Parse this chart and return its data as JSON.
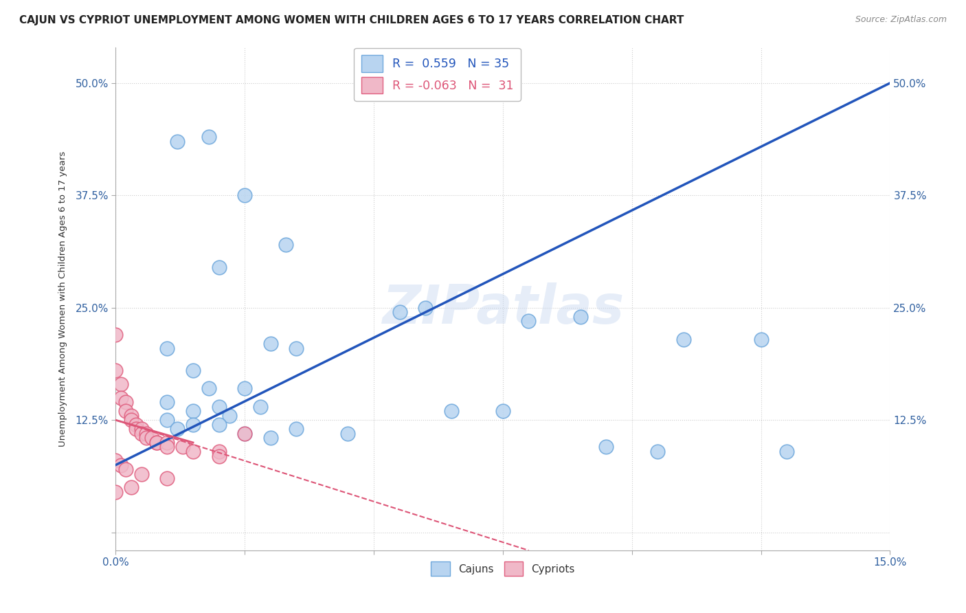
{
  "title": "CAJUN VS CYPRIOT UNEMPLOYMENT AMONG WOMEN WITH CHILDREN AGES 6 TO 17 YEARS CORRELATION CHART",
  "source": "Source: ZipAtlas.com",
  "xlim": [
    0.0,
    15.0
  ],
  "ylim": [
    -2.0,
    54.0
  ],
  "ylabel": "Unemployment Among Women with Children Ages 6 to 17 years",
  "legend_cajun_r": "0.559",
  "legend_cajun_n": "35",
  "legend_cypriot_r": "-0.063",
  "legend_cypriot_n": "31",
  "cajun_color": "#b8d4f0",
  "cajun_edge_color": "#6fa8dc",
  "cypriot_color": "#f0b8c8",
  "cypriot_edge_color": "#e06080",
  "trend_cajun_color": "#2255bb",
  "trend_cypriot_color": "#dd5577",
  "background_color": "#ffffff",
  "watermark_text": "ZIPatlas",
  "cajun_points": [
    [
      1.2,
      43.5
    ],
    [
      1.8,
      44.0
    ],
    [
      2.5,
      37.5
    ],
    [
      3.3,
      32.0
    ],
    [
      2.0,
      29.5
    ],
    [
      1.0,
      20.5
    ],
    [
      1.5,
      18.0
    ],
    [
      3.0,
      21.0
    ],
    [
      3.5,
      20.5
    ],
    [
      1.8,
      16.0
    ],
    [
      2.5,
      16.0
    ],
    [
      1.0,
      14.5
    ],
    [
      2.0,
      14.0
    ],
    [
      2.8,
      14.0
    ],
    [
      1.5,
      13.5
    ],
    [
      2.2,
      13.0
    ],
    [
      1.0,
      12.5
    ],
    [
      1.5,
      12.0
    ],
    [
      2.0,
      12.0
    ],
    [
      1.2,
      11.5
    ],
    [
      3.5,
      11.5
    ],
    [
      2.5,
      11.0
    ],
    [
      3.0,
      10.5
    ],
    [
      4.5,
      11.0
    ],
    [
      5.5,
      24.5
    ],
    [
      6.0,
      25.0
    ],
    [
      6.5,
      13.5
    ],
    [
      7.5,
      13.5
    ],
    [
      8.0,
      23.5
    ],
    [
      9.0,
      24.0
    ],
    [
      9.5,
      9.5
    ],
    [
      10.5,
      9.0
    ],
    [
      11.0,
      21.5
    ],
    [
      12.5,
      21.5
    ],
    [
      13.0,
      9.0
    ]
  ],
  "cypriot_points": [
    [
      0.0,
      22.0
    ],
    [
      0.0,
      18.0
    ],
    [
      0.1,
      16.5
    ],
    [
      0.1,
      15.0
    ],
    [
      0.2,
      14.5
    ],
    [
      0.2,
      13.5
    ],
    [
      0.3,
      13.0
    ],
    [
      0.3,
      12.5
    ],
    [
      0.4,
      12.0
    ],
    [
      0.4,
      11.5
    ],
    [
      0.5,
      11.5
    ],
    [
      0.5,
      11.0
    ],
    [
      0.6,
      11.0
    ],
    [
      0.6,
      10.5
    ],
    [
      0.7,
      10.5
    ],
    [
      0.8,
      10.0
    ],
    [
      0.8,
      10.0
    ],
    [
      1.0,
      10.0
    ],
    [
      1.0,
      9.5
    ],
    [
      1.3,
      9.5
    ],
    [
      1.5,
      9.0
    ],
    [
      2.0,
      9.0
    ],
    [
      2.0,
      8.5
    ],
    [
      0.0,
      8.0
    ],
    [
      0.1,
      7.5
    ],
    [
      0.2,
      7.0
    ],
    [
      0.5,
      6.5
    ],
    [
      1.0,
      6.0
    ],
    [
      2.5,
      11.0
    ],
    [
      0.3,
      5.0
    ],
    [
      0.0,
      4.5
    ]
  ],
  "x_ticks": [
    0.0,
    2.5,
    5.0,
    7.5,
    10.0,
    12.5,
    15.0
  ],
  "x_tick_labels": [
    "0.0%",
    "",
    "",
    "",
    "",
    "",
    "15.0%"
  ],
  "y_ticks": [
    0,
    12.5,
    25.0,
    37.5,
    50.0
  ],
  "y_tick_labels": [
    "",
    "12.5%",
    "25.0%",
    "37.5%",
    "50.0%"
  ]
}
